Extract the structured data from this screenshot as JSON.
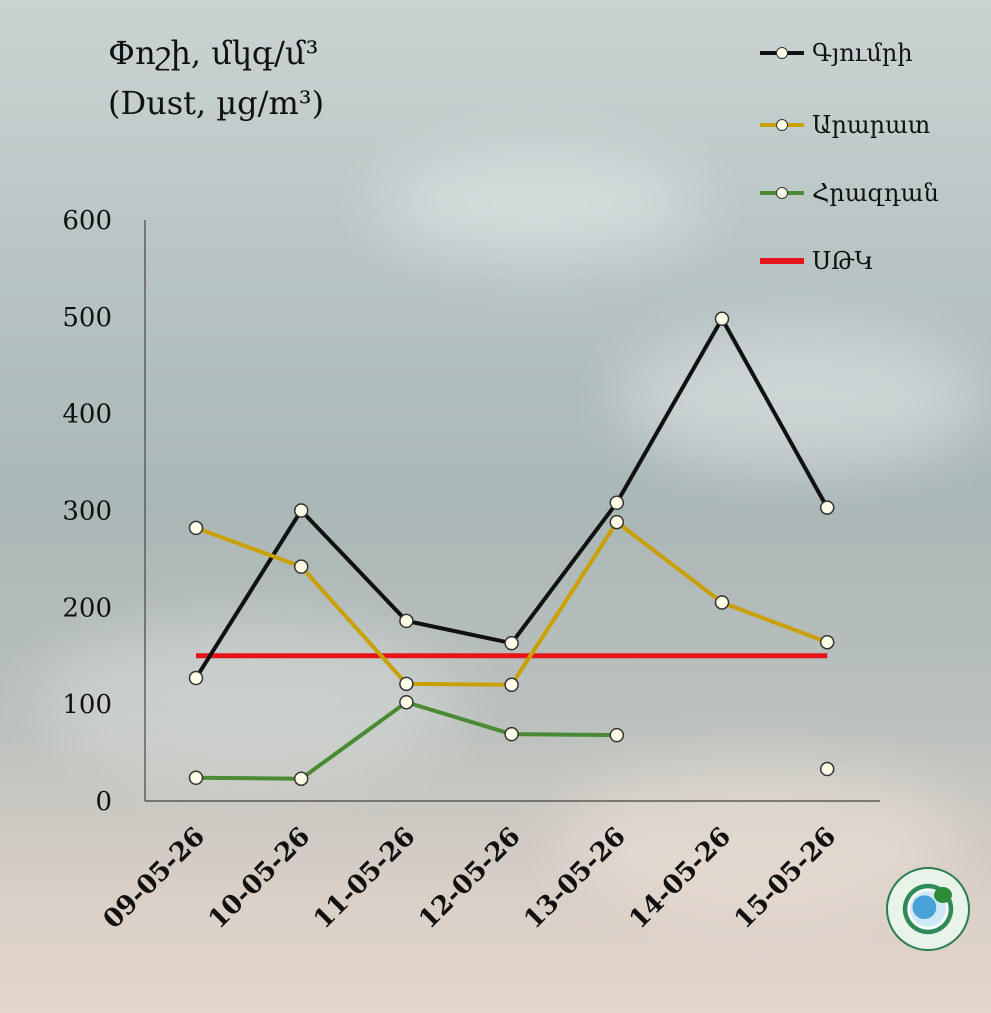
{
  "title": {
    "line1": "Փոշի, մկգ/մ³",
    "line2": "(Dust, µg/m³)"
  },
  "colors": {
    "gyumri": "#111111",
    "ararat": "#c9a000",
    "hrazdan": "#4a8a35",
    "mac": "#e8141b"
  },
  "chart_data": {
    "type": "line",
    "categories": [
      "09-05-26",
      "10-05-26",
      "11-05-26",
      "12-05-26",
      "13-05-26",
      "14-05-26",
      "15-05-26"
    ],
    "ylim": [
      0,
      600
    ],
    "yticks": [
      "0",
      "100",
      "200",
      "300",
      "400",
      "500",
      "600"
    ],
    "series": [
      {
        "name": "Գյումրի",
        "key": "gyumri",
        "values": [
          127,
          300,
          186,
          163,
          308,
          498,
          303
        ]
      },
      {
        "name": "Արարատ",
        "key": "ararat",
        "values": [
          282,
          242,
          121,
          120,
          288,
          205,
          164
        ]
      },
      {
        "name": "Հրազդան",
        "key": "hrazdan",
        "values": [
          24,
          23,
          102,
          69,
          68,
          null,
          33
        ]
      }
    ],
    "threshold": {
      "name": "ՍԹԿ",
      "value": 150
    }
  }
}
